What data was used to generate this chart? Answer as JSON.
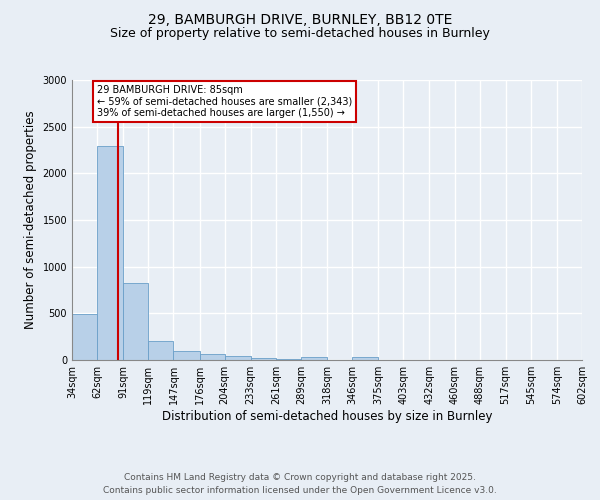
{
  "title_line1": "29, BAMBURGH DRIVE, BURNLEY, BB12 0TE",
  "title_line2": "Size of property relative to semi-detached houses in Burnley",
  "xlabel": "Distribution of semi-detached houses by size in Burnley",
  "ylabel": "Number of semi-detached properties",
  "bar_color": "#b8d0e8",
  "bar_edge_color": "#6a9fc8",
  "bar_left_edges": [
    34,
    62,
    91,
    119,
    147,
    176,
    204,
    233,
    261,
    289,
    318,
    346,
    375,
    403,
    432,
    460,
    488,
    517,
    545,
    574
  ],
  "bar_widths": [
    28,
    29,
    28,
    28,
    29,
    28,
    29,
    28,
    28,
    29,
    28,
    29,
    28,
    29,
    28,
    28,
    29,
    28,
    29,
    28
  ],
  "bar_heights": [
    495,
    2290,
    830,
    205,
    95,
    65,
    45,
    25,
    15,
    35,
    0,
    30,
    0,
    0,
    0,
    0,
    0,
    0,
    0,
    0
  ],
  "x_tick_labels": [
    "34sqm",
    "62sqm",
    "91sqm",
    "119sqm",
    "147sqm",
    "176sqm",
    "204sqm",
    "233sqm",
    "261sqm",
    "289sqm",
    "318sqm",
    "346sqm",
    "375sqm",
    "403sqm",
    "432sqm",
    "460sqm",
    "488sqm",
    "517sqm",
    "545sqm",
    "574sqm",
    "602sqm"
  ],
  "x_tick_positions": [
    34,
    62,
    91,
    119,
    147,
    176,
    204,
    233,
    261,
    289,
    318,
    346,
    375,
    403,
    432,
    460,
    488,
    517,
    545,
    574,
    602
  ],
  "ylim": [
    0,
    3000
  ],
  "yticks": [
    0,
    500,
    1000,
    1500,
    2000,
    2500,
    3000
  ],
  "property_size": 85,
  "red_line_color": "#cc0000",
  "annotation_text": "29 BAMBURGH DRIVE: 85sqm\n← 59% of semi-detached houses are smaller (2,343)\n39% of semi-detached houses are larger (1,550) →",
  "annotation_box_color": "#ffffff",
  "annotation_box_edge": "#cc0000",
  "footer_text": "Contains HM Land Registry data © Crown copyright and database right 2025.\nContains public sector information licensed under the Open Government Licence v3.0.",
  "background_color": "#e8eef5",
  "grid_color": "#ffffff",
  "title_fontsize": 10,
  "subtitle_fontsize": 9,
  "tick_fontsize": 7,
  "axis_label_fontsize": 8.5,
  "footer_fontsize": 6.5
}
